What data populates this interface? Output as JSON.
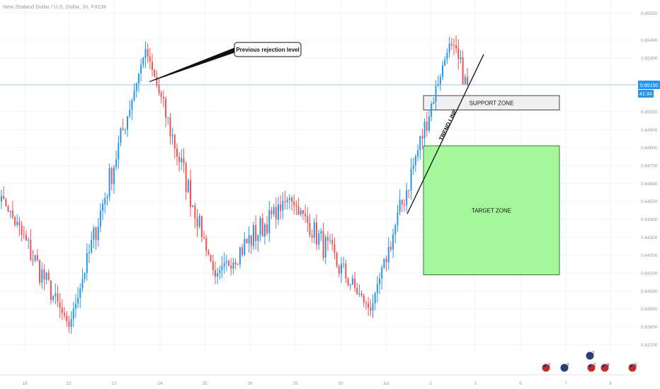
{
  "symbol_title": "New Zealand Dollar / U.S. Dollar, 1h, FXCM",
  "price_tag": {
    "price": "0.65150",
    "countdown": "41:34"
  },
  "annotations": {
    "callout": "Previous rejection level",
    "support_zone": "SUPPORT ZONE",
    "target_zone": "TARGET ZONE",
    "trend_line": "TREND LINE"
  },
  "colors": {
    "up_candle": "#2196f3",
    "down_candle": "#ef5350",
    "price_line": "#2196f3",
    "grid": "#f0f3fa",
    "target_zone_fill": "#a5f79b",
    "support_zone_fill": "#f0f0f0"
  },
  "event_flags": [
    {
      "name": "us-flag-icon",
      "count": "2"
    },
    {
      "name": "nz-flag-icon",
      "count": "2"
    },
    {
      "name": "nz-flag-icon",
      "count": "2"
    },
    {
      "name": "us-flag-icon",
      "count": "2"
    },
    {
      "name": "us-flag-icon",
      "count": "8"
    },
    {
      "name": "us-flag-icon",
      "count": "5"
    }
  ],
  "chart_data": {
    "type": "candlestick",
    "title": "New Zealand Dollar / U.S. Dollar, 1h, FXCM",
    "timeframe": "1h",
    "x_tick_labels": [
      "19",
      "22",
      "23",
      "24",
      "25",
      "26",
      "29",
      "30",
      "Jul",
      "2",
      "3",
      "6",
      "7",
      "8"
    ],
    "y_tick_labels": [
      "0.65550",
      "0.65400",
      "0.65300",
      "0.65150",
      "0.65000",
      "0.64900",
      "0.64800",
      "0.64700",
      "0.64600",
      "0.64500",
      "0.64400",
      "0.64300",
      "0.64200",
      "0.64100",
      "0.64000",
      "0.63900",
      "0.63800",
      "0.63700"
    ],
    "ylim": [
      0.6365,
      0.656
    ],
    "last_price": 0.6515,
    "grid": true,
    "key_points": [
      {
        "label": "start",
        "price": 0.6453
      },
      {
        "label": "low 22",
        "price": 0.638
      },
      {
        "label": "high 23",
        "price": 0.6535
      },
      {
        "label": "low 25",
        "price": 0.6408
      },
      {
        "label": "high 26",
        "price": 0.6452
      },
      {
        "label": "low 30",
        "price": 0.6389
      },
      {
        "label": "high 2",
        "price": 0.6538
      },
      {
        "label": "last",
        "price": 0.6515
      }
    ],
    "zones": [
      {
        "name": "SUPPORT ZONE",
        "price_top": 0.6509,
        "price_bottom": 0.6501,
        "from_x": "2",
        "to_x": "6"
      },
      {
        "name": "TARGET ZONE",
        "price_top": 0.6481,
        "price_bottom": 0.6409,
        "from_x": "2",
        "to_x": "6"
      }
    ],
    "trend_line": {
      "label": "TREND LINE",
      "from": {
        "x": "Jul",
        "price": 0.6443
      },
      "to": {
        "x": "3",
        "price": 0.6532
      }
    },
    "callout": {
      "text": "Previous rejection level",
      "price": 0.6516,
      "x": "23"
    }
  }
}
